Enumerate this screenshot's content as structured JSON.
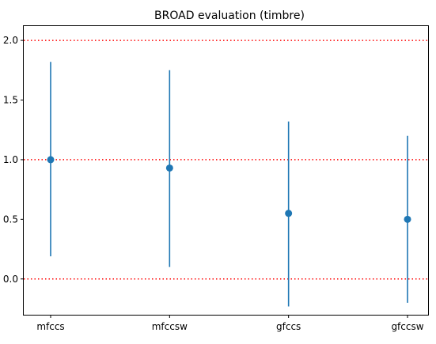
{
  "chart_data": {
    "type": "scatter",
    "title": "BROAD evaluation (timbre)",
    "xlabel": "",
    "ylabel": "",
    "categories": [
      "mfccs",
      "mfccsw",
      "gfccs",
      "gfccsw"
    ],
    "series": [
      {
        "values": [
          1.0,
          0.93,
          0.55,
          0.5
        ],
        "error_low": [
          0.19,
          0.1,
          -0.23,
          -0.2
        ],
        "error_high": [
          1.82,
          1.75,
          1.32,
          1.2
        ],
        "color": "#1f77b4"
      }
    ],
    "reference_lines": [
      {
        "y": 2.0,
        "color": "#ff0000",
        "style": "dotted"
      },
      {
        "y": 1.0,
        "color": "#ff0000",
        "style": "dotted"
      },
      {
        "y": 0.0,
        "color": "#ff0000",
        "style": "dotted"
      }
    ],
    "yticks": [
      0.0,
      0.5,
      1.0,
      1.5,
      2.0
    ],
    "ytick_labels": [
      "0.0",
      "0.5",
      "1.0",
      "1.5",
      "2.0"
    ],
    "ylim": [
      -0.3,
      2.12
    ],
    "grid": false,
    "legend": "none"
  }
}
